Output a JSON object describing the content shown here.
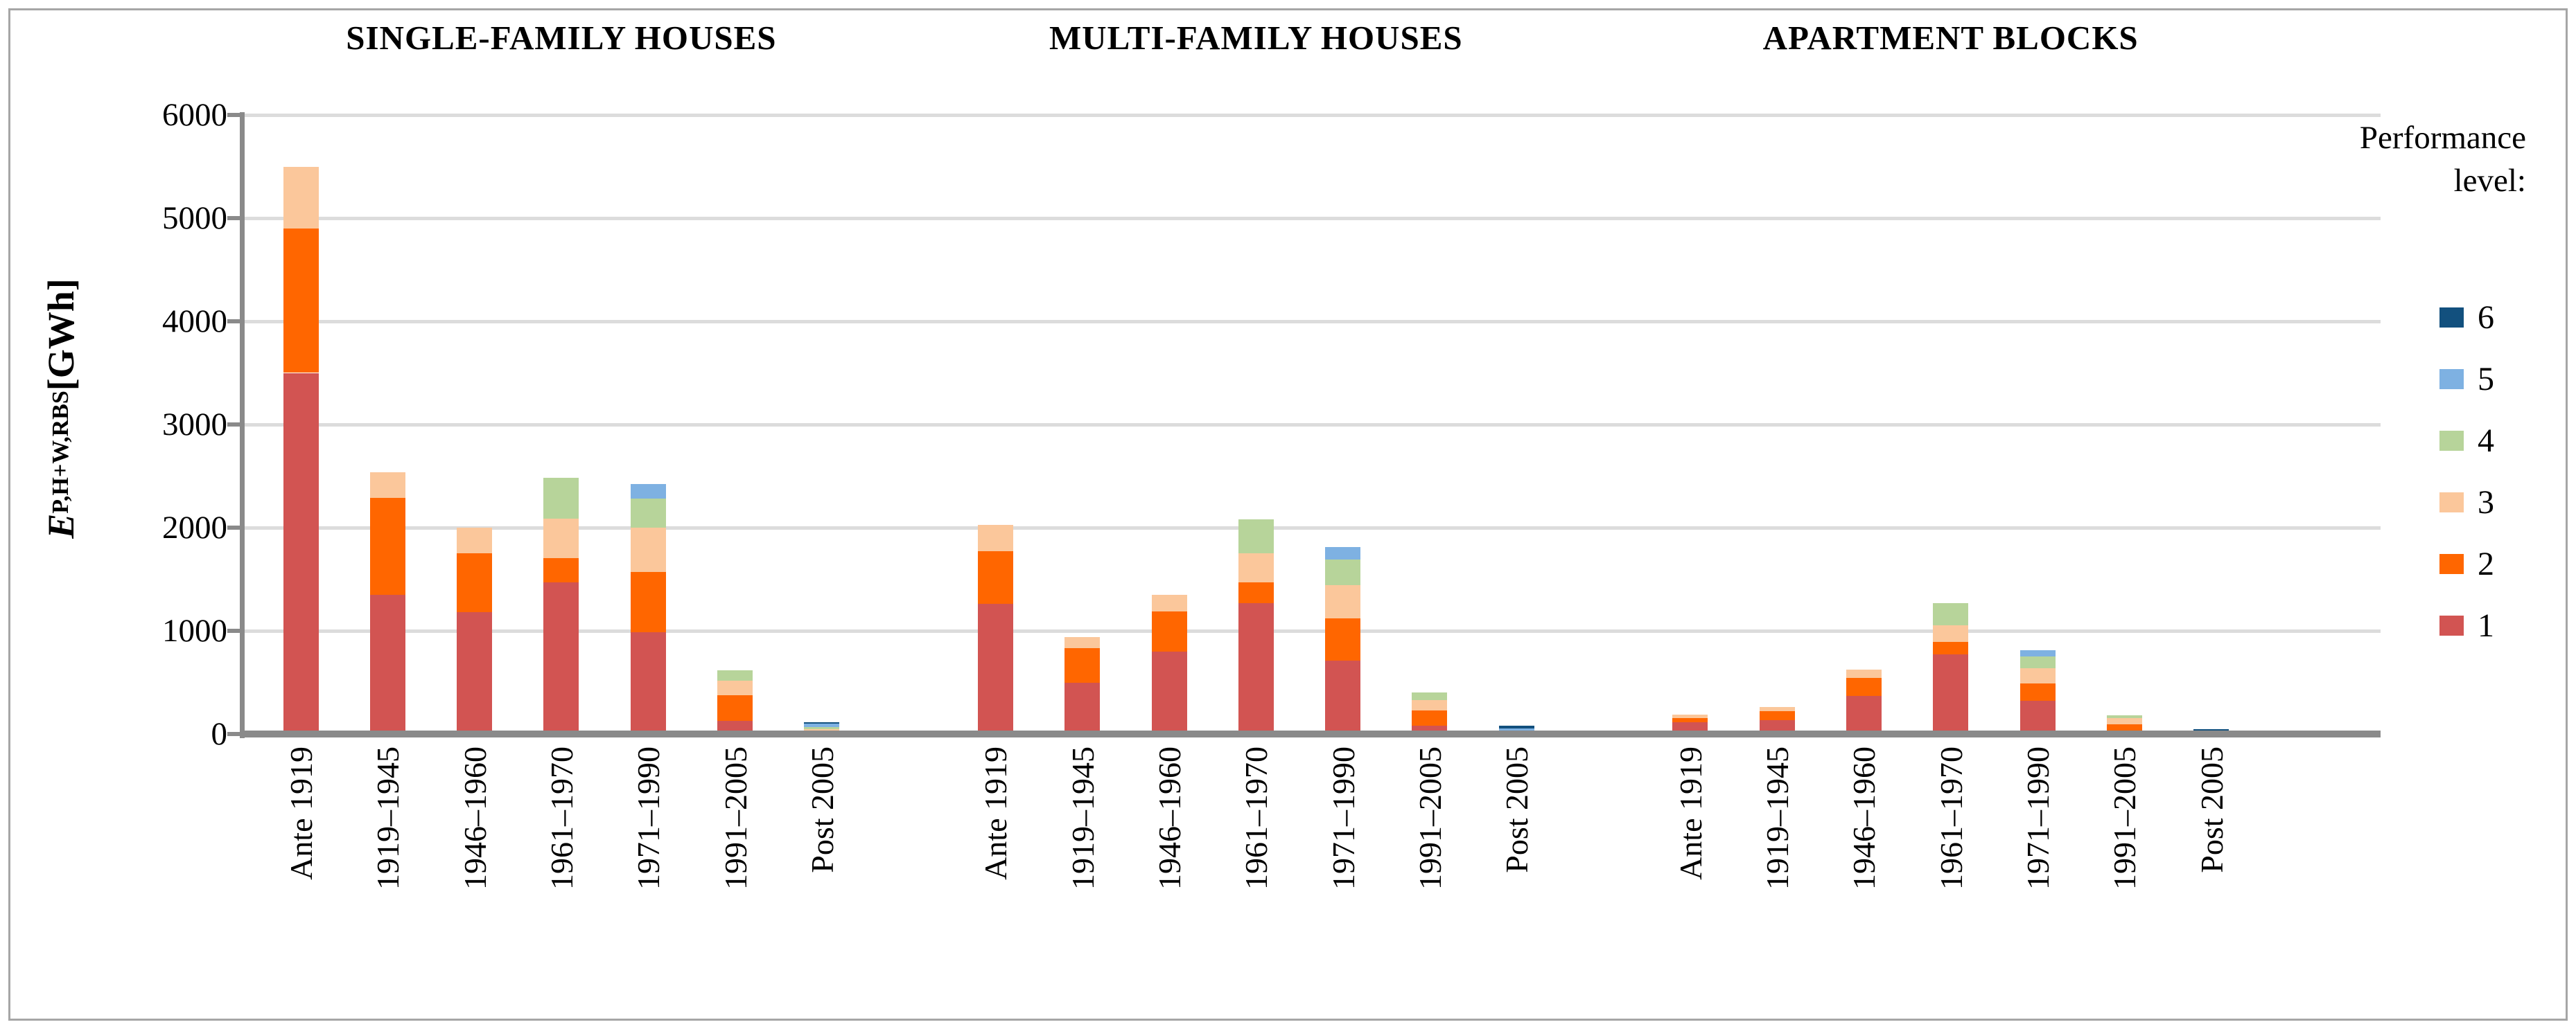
{
  "ylabel": {
    "e": "E",
    "sub": "P,H+W,RBS",
    "unit": " [GWh]"
  },
  "legend": {
    "title_line1": "Performance",
    "title_line2": "level:",
    "entries": [
      {
        "label": "6",
        "color": "#12507E"
      },
      {
        "label": "5",
        "color": "#7EB1E2"
      },
      {
        "label": "4",
        "color": "#B7D49A"
      },
      {
        "label": "3",
        "color": "#FBC79B"
      },
      {
        "label": "2",
        "color": "#FF6600"
      },
      {
        "label": "1",
        "color": "#D25452"
      }
    ]
  },
  "chart_data": {
    "type": "bar",
    "stacked": true,
    "title": "",
    "ylabel": "E_P,H+W,RBS [GWh]",
    "ylim": [
      0,
      6000
    ],
    "yticks": [
      0,
      1000,
      2000,
      3000,
      4000,
      5000,
      6000
    ],
    "grid": true,
    "legend_position": "right",
    "legend_title": "Performance level:",
    "levels": [
      "1",
      "2",
      "3",
      "4",
      "5",
      "6"
    ],
    "level_colors": [
      "#D25452",
      "#FF6600",
      "#FBC79B",
      "#B7D49A",
      "#7EB1E2",
      "#12507E"
    ],
    "categories": [
      "Ante 1919",
      "1919–1945",
      "1946–1960",
      "1961–1970",
      "1971–1990",
      "1991–2005",
      "Post 2005"
    ],
    "groups": [
      {
        "title": "SINGLE-FAMILY HOUSES",
        "bars": [
          {
            "category": "Ante 1919",
            "values": [
              3500,
              1400,
              600,
              0,
              0,
              0
            ]
          },
          {
            "category": "1919–1945",
            "values": [
              1350,
              940,
              250,
              0,
              0,
              0
            ]
          },
          {
            "category": "1946–1960",
            "values": [
              1180,
              570,
              250,
              0,
              0,
              0
            ]
          },
          {
            "category": "1961–1970",
            "values": [
              1470,
              235,
              380,
              395,
              0,
              0
            ]
          },
          {
            "category": "1971–1990",
            "values": [
              985,
              585,
              430,
              280,
              140,
              0
            ]
          },
          {
            "category": "1991–2005",
            "values": [
              130,
              245,
              145,
              95,
              0,
              0
            ]
          },
          {
            "category": "Post 2005",
            "values": [
              0,
              20,
              25,
              25,
              30,
              15
            ]
          }
        ]
      },
      {
        "title": "MULTI-FAMILY HOUSES",
        "bars": [
          {
            "category": "Ante 1919",
            "values": [
              1260,
              510,
              260,
              0,
              0,
              0
            ]
          },
          {
            "category": "1919–1945",
            "values": [
              495,
              335,
              110,
              0,
              0,
              0
            ]
          },
          {
            "category": "1946–1960",
            "values": [
              800,
              390,
              160,
              0,
              0,
              0
            ]
          },
          {
            "category": "1961–1970",
            "values": [
              1270,
              200,
              280,
              330,
              0,
              0
            ]
          },
          {
            "category": "1971–1990",
            "values": [
              710,
              410,
              320,
              250,
              120,
              0
            ]
          },
          {
            "category": "1991–2005",
            "values": [
              80,
              145,
              105,
              75,
              0,
              0
            ]
          },
          {
            "category": "Post 2005",
            "values": [
              0,
              15,
              15,
              0,
              25,
              25
            ]
          }
        ]
      },
      {
        "title": "APARTMENT BLOCKS",
        "bars": [
          {
            "category": "Ante 1919",
            "values": [
              115,
              40,
              30,
              0,
              0,
              0
            ]
          },
          {
            "category": "1919–1945",
            "values": [
              135,
              85,
              40,
              0,
              0,
              0
            ]
          },
          {
            "category": "1946–1960",
            "values": [
              370,
              175,
              80,
              0,
              0,
              0
            ]
          },
          {
            "category": "1961–1970",
            "values": [
              775,
              115,
              165,
              215,
              0,
              0
            ]
          },
          {
            "category": "1971–1990",
            "values": [
              320,
              170,
              150,
              110,
              60,
              0
            ]
          },
          {
            "category": "1991–2005",
            "values": [
              30,
              65,
              60,
              25,
              0,
              0
            ]
          },
          {
            "category": "Post 2005",
            "values": [
              0,
              0,
              0,
              0,
              30,
              20
            ]
          }
        ]
      }
    ]
  }
}
